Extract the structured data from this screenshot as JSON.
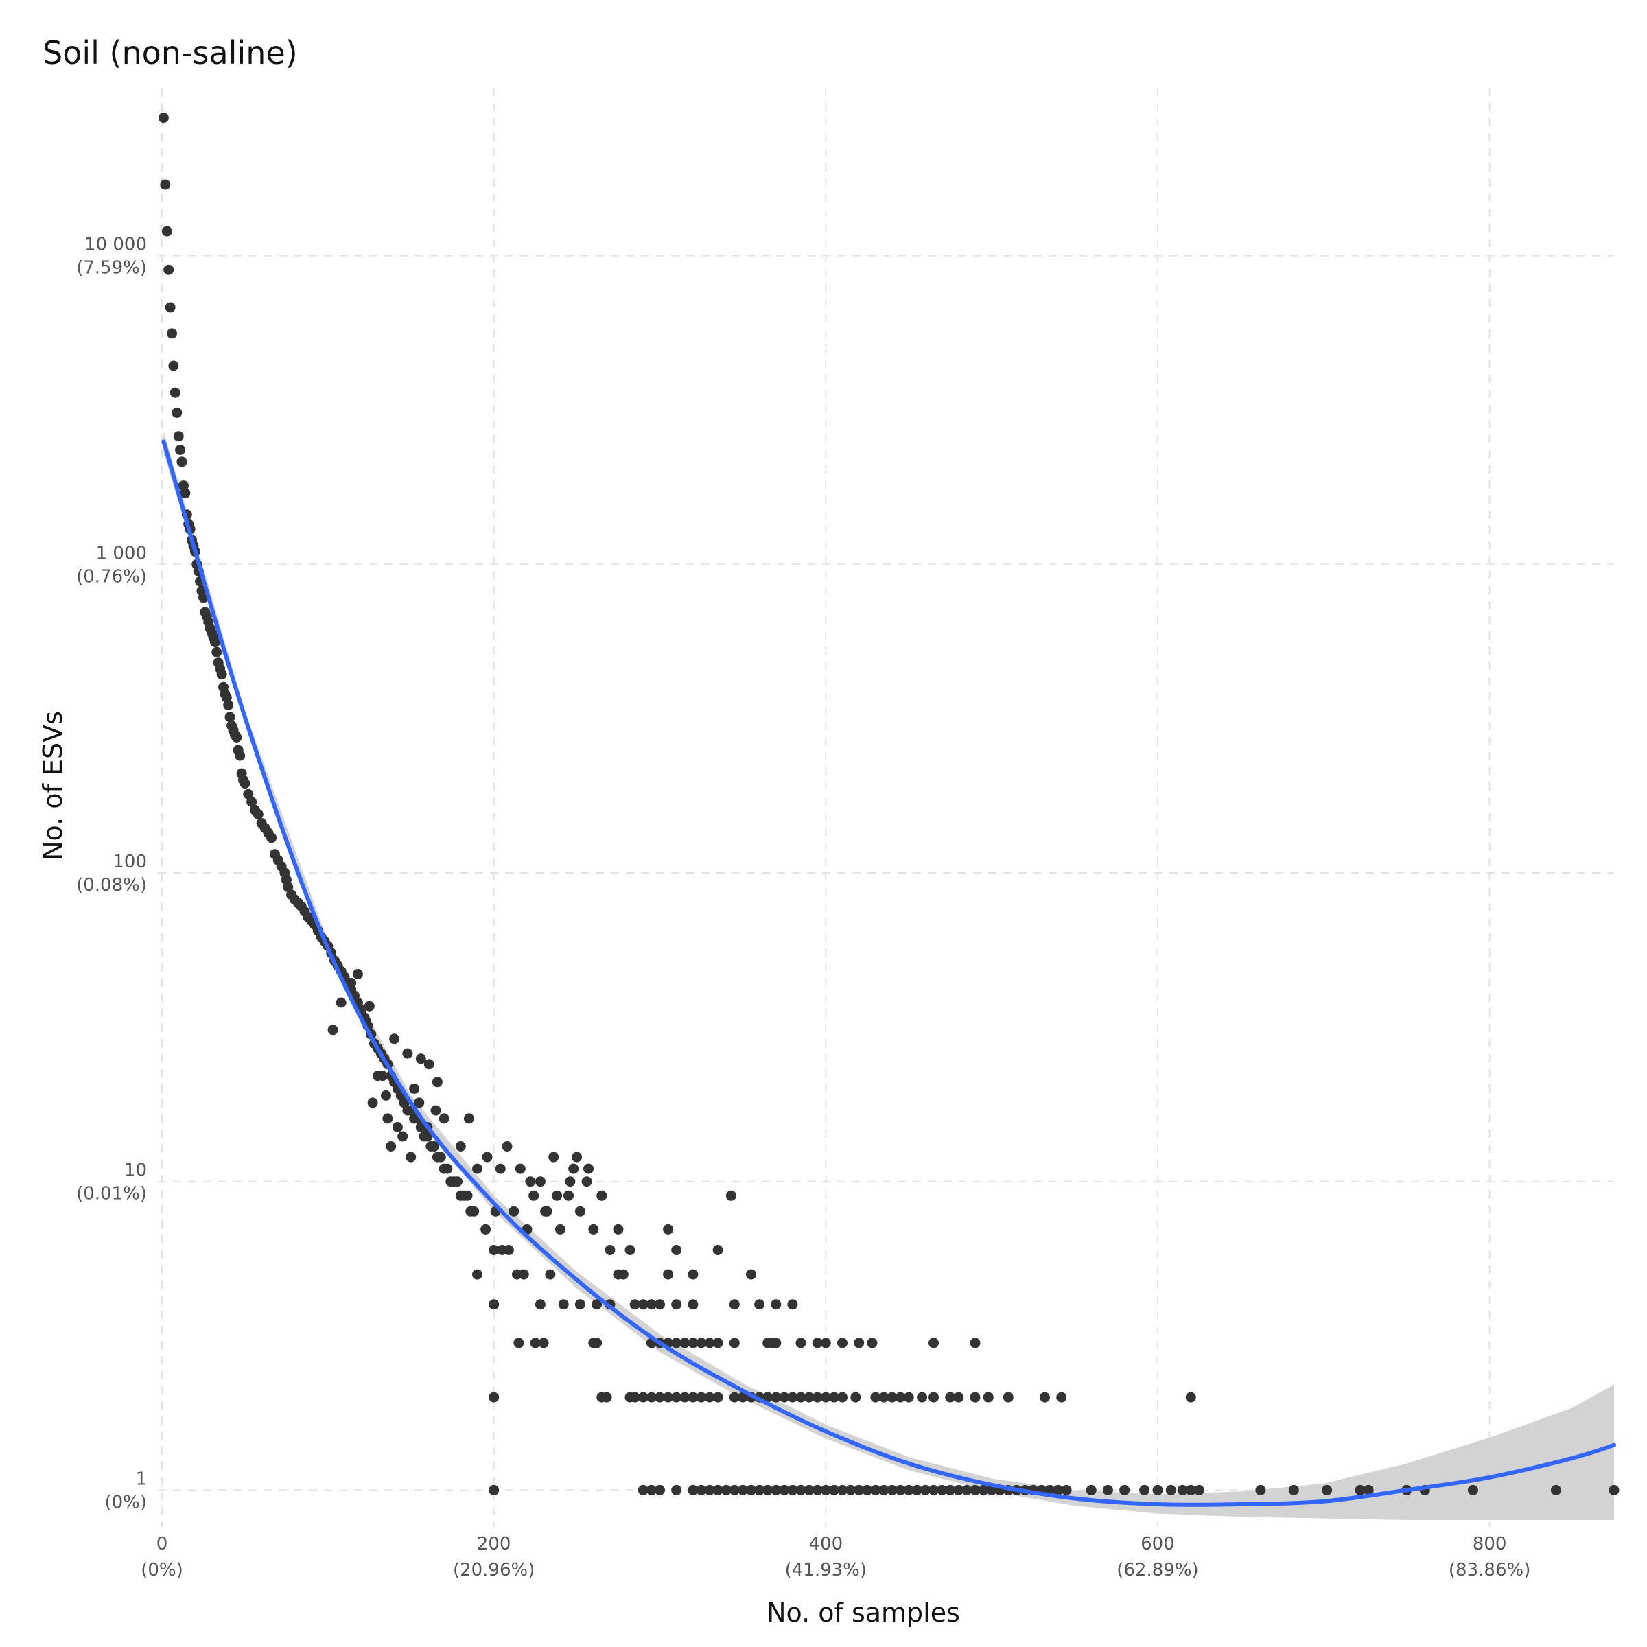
{
  "chart_data": {
    "type": "scatter",
    "title": "Soil (non-saline)",
    "xlabel": "No. of samples",
    "ylabel": "No. of ESVs",
    "y_scale": "log10",
    "xlim": [
      0,
      875
    ],
    "ylim": [
      0.8,
      35000
    ],
    "grid": true,
    "x_ticks": [
      {
        "value": 0,
        "label": "0",
        "sublabel": "(0%)"
      },
      {
        "value": 200,
        "label": "200",
        "sublabel": "(20.96%)"
      },
      {
        "value": 400,
        "label": "400",
        "sublabel": "(41.93%)"
      },
      {
        "value": 600,
        "label": "600",
        "sublabel": "(62.89%)"
      },
      {
        "value": 800,
        "label": "800",
        "sublabel": "(83.86%)"
      }
    ],
    "y_ticks": [
      {
        "value": 1,
        "label": "1",
        "sublabel": "(0%)"
      },
      {
        "value": 10,
        "label": "10",
        "sublabel": "(0.01%)"
      },
      {
        "value": 100,
        "label": "100",
        "sublabel": "(0.08%)"
      },
      {
        "value": 1000,
        "label": "1 000",
        "sublabel": "(0.76%)"
      },
      {
        "value": 10000,
        "label": "10 000",
        "sublabel": "(7.59%)"
      }
    ],
    "points": [
      [
        1,
        28000
      ],
      [
        2,
        17000
      ],
      [
        3,
        12000
      ],
      [
        4,
        9000
      ],
      [
        5,
        6800
      ],
      [
        6,
        5600
      ],
      [
        7,
        4400
      ],
      [
        8,
        3600
      ],
      [
        9,
        3100
      ],
      [
        10,
        2600
      ],
      [
        11,
        2350
      ],
      [
        12,
        2150
      ],
      [
        13,
        1800
      ],
      [
        14,
        1700
      ],
      [
        15,
        1450
      ],
      [
        16,
        1350
      ],
      [
        17,
        1300
      ],
      [
        18,
        1200
      ],
      [
        19,
        1150
      ],
      [
        20,
        1100
      ],
      [
        21,
        1000
      ],
      [
        22,
        950
      ],
      [
        23,
        880
      ],
      [
        24,
        820
      ],
      [
        25,
        780
      ],
      [
        26,
        700
      ],
      [
        27,
        680
      ],
      [
        28,
        650
      ],
      [
        29,
        620
      ],
      [
        30,
        600
      ],
      [
        31,
        580
      ],
      [
        32,
        560
      ],
      [
        33,
        520
      ],
      [
        34,
        480
      ],
      [
        35,
        460
      ],
      [
        36,
        440
      ],
      [
        37,
        400
      ],
      [
        38,
        380
      ],
      [
        39,
        370
      ],
      [
        40,
        350
      ],
      [
        41,
        320
      ],
      [
        42,
        300
      ],
      [
        43,
        290
      ],
      [
        44,
        280
      ],
      [
        45,
        275
      ],
      [
        46,
        250
      ],
      [
        47,
        240
      ],
      [
        48,
        210
      ],
      [
        49,
        200
      ],
      [
        50,
        195
      ],
      [
        52,
        180
      ],
      [
        54,
        170
      ],
      [
        56,
        160
      ],
      [
        58,
        155
      ],
      [
        60,
        145
      ],
      [
        62,
        140
      ],
      [
        64,
        135
      ],
      [
        66,
        130
      ],
      [
        68,
        115
      ],
      [
        70,
        110
      ],
      [
        72,
        105
      ],
      [
        74,
        100
      ],
      [
        75,
        95
      ],
      [
        76,
        90
      ],
      [
        78,
        85
      ],
      [
        80,
        82
      ],
      [
        82,
        80
      ],
      [
        84,
        78
      ],
      [
        86,
        75
      ],
      [
        88,
        72
      ],
      [
        90,
        70
      ],
      [
        92,
        68
      ],
      [
        94,
        65
      ],
      [
        96,
        62
      ],
      [
        98,
        60
      ],
      [
        100,
        58
      ],
      [
        102,
        55
      ],
      [
        104,
        52
      ],
      [
        106,
        50
      ],
      [
        108,
        48
      ],
      [
        110,
        46
      ],
      [
        112,
        44
      ],
      [
        114,
        42
      ],
      [
        116,
        40
      ],
      [
        118,
        38
      ],
      [
        120,
        36
      ],
      [
        122,
        34
      ],
      [
        124,
        32
      ],
      [
        126,
        30
      ],
      [
        128,
        28
      ],
      [
        130,
        27
      ],
      [
        132,
        26
      ],
      [
        134,
        25
      ],
      [
        136,
        24
      ],
      [
        138,
        22
      ],
      [
        140,
        21
      ],
      [
        142,
        20
      ],
      [
        144,
        19
      ],
      [
        146,
        18
      ],
      [
        148,
        17
      ],
      [
        150,
        17
      ],
      [
        152,
        16
      ],
      [
        154,
        16
      ],
      [
        156,
        15
      ],
      [
        158,
        14
      ],
      [
        160,
        14
      ],
      [
        162,
        13
      ],
      [
        164,
        13
      ],
      [
        166,
        12
      ],
      [
        168,
        12
      ],
      [
        170,
        11
      ],
      [
        172,
        11
      ],
      [
        174,
        10
      ],
      [
        176,
        10
      ],
      [
        178,
        10
      ],
      [
        180,
        9
      ],
      [
        182,
        9
      ],
      [
        184,
        9
      ],
      [
        186,
        8
      ],
      [
        188,
        8
      ],
      [
        103,
        31
      ],
      [
        108,
        38
      ],
      [
        114,
        44
      ],
      [
        118,
        47
      ],
      [
        123,
        33
      ],
      [
        127,
        18
      ],
      [
        133,
        22
      ],
      [
        136,
        16
      ],
      [
        140,
        29
      ],
      [
        145,
        14
      ],
      [
        150,
        12
      ],
      [
        155,
        18
      ],
      [
        160,
        15
      ],
      [
        165,
        17
      ],
      [
        170,
        16
      ],
      [
        180,
        13
      ],
      [
        185,
        16
      ],
      [
        190,
        11
      ],
      [
        195,
        7
      ],
      [
        200,
        6
      ],
      [
        204,
        11
      ],
      [
        208,
        13
      ],
      [
        212,
        8
      ],
      [
        216,
        11
      ],
      [
        220,
        7
      ],
      [
        224,
        9
      ],
      [
        228,
        10
      ],
      [
        232,
        8
      ],
      [
        236,
        12
      ],
      [
        240,
        7
      ],
      [
        245,
        9
      ],
      [
        248,
        11
      ],
      [
        252,
        8
      ],
      [
        256,
        10
      ],
      [
        260,
        7
      ],
      [
        265,
        9
      ],
      [
        270,
        6
      ],
      [
        275,
        7
      ],
      [
        278,
        5
      ],
      [
        282,
        6
      ],
      [
        125,
        37
      ],
      [
        130,
        22
      ],
      [
        135,
        19
      ],
      [
        138,
        13
      ],
      [
        142,
        15
      ],
      [
        148,
        26
      ],
      [
        152,
        20
      ],
      [
        156,
        25
      ],
      [
        161,
        24
      ],
      [
        166,
        21
      ],
      [
        196,
        12
      ],
      [
        201,
        8
      ],
      [
        209,
        6
      ],
      [
        214,
        5
      ],
      [
        222,
        10
      ],
      [
        231,
        8
      ],
      [
        238,
        9
      ],
      [
        246,
        10
      ],
      [
        250,
        12
      ],
      [
        257,
        11
      ],
      [
        190,
        5
      ],
      [
        200,
        4
      ],
      [
        205,
        6
      ],
      [
        218,
        5
      ],
      [
        228,
        4
      ],
      [
        234,
        5
      ],
      [
        242,
        4
      ],
      [
        252,
        4
      ],
      [
        262,
        4
      ],
      [
        270,
        4
      ],
      [
        275,
        5
      ],
      [
        285,
        4
      ],
      [
        290,
        4
      ],
      [
        295,
        4
      ],
      [
        300,
        4
      ],
      [
        305,
        5
      ],
      [
        310,
        4
      ],
      [
        320,
        4
      ],
      [
        345,
        4
      ],
      [
        360,
        4
      ],
      [
        305,
        7
      ],
      [
        310,
        6
      ],
      [
        320,
        5
      ],
      [
        335,
        6
      ],
      [
        343,
        9
      ],
      [
        355,
        5
      ],
      [
        370,
        4
      ],
      [
        380,
        4
      ],
      [
        215,
        3
      ],
      [
        225,
        3
      ],
      [
        230,
        3
      ],
      [
        260,
        3
      ],
      [
        262,
        3
      ],
      [
        295,
        3
      ],
      [
        300,
        3
      ],
      [
        305,
        3
      ],
      [
        310,
        3
      ],
      [
        315,
        3
      ],
      [
        320,
        3
      ],
      [
        325,
        3
      ],
      [
        330,
        3
      ],
      [
        335,
        3
      ],
      [
        345,
        3
      ],
      [
        365,
        3
      ],
      [
        368,
        3
      ],
      [
        370,
        3
      ],
      [
        385,
        3
      ],
      [
        395,
        3
      ],
      [
        400,
        3
      ],
      [
        410,
        3
      ],
      [
        420,
        3
      ],
      [
        428,
        3
      ],
      [
        465,
        3
      ],
      [
        490,
        3
      ],
      [
        200,
        2
      ],
      [
        265,
        2
      ],
      [
        268,
        2
      ],
      [
        282,
        2
      ],
      [
        285,
        2
      ],
      [
        290,
        2
      ],
      [
        295,
        2
      ],
      [
        300,
        2
      ],
      [
        305,
        2
      ],
      [
        310,
        2
      ],
      [
        315,
        2
      ],
      [
        320,
        2
      ],
      [
        325,
        2
      ],
      [
        330,
        2
      ],
      [
        335,
        2
      ],
      [
        345,
        2
      ],
      [
        350,
        2
      ],
      [
        355,
        2
      ],
      [
        360,
        2
      ],
      [
        365,
        2
      ],
      [
        370,
        2
      ],
      [
        375,
        2
      ],
      [
        380,
        2
      ],
      [
        385,
        2
      ],
      [
        390,
        2
      ],
      [
        395,
        2
      ],
      [
        400,
        2
      ],
      [
        405,
        2
      ],
      [
        410,
        2
      ],
      [
        418,
        2
      ],
      [
        430,
        2
      ],
      [
        435,
        2
      ],
      [
        440,
        2
      ],
      [
        445,
        2
      ],
      [
        450,
        2
      ],
      [
        458,
        2
      ],
      [
        465,
        2
      ],
      [
        475,
        2
      ],
      [
        480,
        2
      ],
      [
        490,
        2
      ],
      [
        498,
        2
      ],
      [
        510,
        2
      ],
      [
        532,
        2
      ],
      [
        542,
        2
      ],
      [
        620,
        2
      ],
      [
        200,
        1
      ],
      [
        290,
        1
      ],
      [
        295,
        1
      ],
      [
        300,
        1
      ],
      [
        310,
        1
      ],
      [
        320,
        1
      ],
      [
        325,
        1
      ],
      [
        330,
        1
      ],
      [
        335,
        1
      ],
      [
        340,
        1
      ],
      [
        345,
        1
      ],
      [
        350,
        1
      ],
      [
        355,
        1
      ],
      [
        360,
        1
      ],
      [
        365,
        1
      ],
      [
        370,
        1
      ],
      [
        375,
        1
      ],
      [
        380,
        1
      ],
      [
        385,
        1
      ],
      [
        390,
        1
      ],
      [
        395,
        1
      ],
      [
        400,
        1
      ],
      [
        405,
        1
      ],
      [
        410,
        1
      ],
      [
        415,
        1
      ],
      [
        420,
        1
      ],
      [
        425,
        1
      ],
      [
        430,
        1
      ],
      [
        435,
        1
      ],
      [
        440,
        1
      ],
      [
        445,
        1
      ],
      [
        450,
        1
      ],
      [
        455,
        1
      ],
      [
        460,
        1
      ],
      [
        465,
        1
      ],
      [
        470,
        1
      ],
      [
        475,
        1
      ],
      [
        480,
        1
      ],
      [
        485,
        1
      ],
      [
        490,
        1
      ],
      [
        495,
        1
      ],
      [
        500,
        1
      ],
      [
        505,
        1
      ],
      [
        510,
        1
      ],
      [
        515,
        1
      ],
      [
        520,
        1
      ],
      [
        525,
        1
      ],
      [
        530,
        1
      ],
      [
        535,
        1
      ],
      [
        540,
        1
      ],
      [
        545,
        1
      ],
      [
        560,
        1
      ],
      [
        570,
        1
      ],
      [
        580,
        1
      ],
      [
        592,
        1
      ],
      [
        600,
        1
      ],
      [
        608,
        1
      ],
      [
        615,
        1
      ],
      [
        620,
        1
      ],
      [
        625,
        1
      ],
      [
        662,
        1
      ],
      [
        682,
        1
      ],
      [
        702,
        1
      ],
      [
        722,
        1
      ],
      [
        727,
        1
      ],
      [
        750,
        1
      ],
      [
        761,
        1
      ],
      [
        790,
        1
      ],
      [
        840,
        1
      ],
      [
        875,
        1
      ]
    ],
    "fit": {
      "type": "smooth",
      "color": "#3366ff",
      "x": [
        1,
        50,
        100,
        150,
        200,
        250,
        300,
        350,
        400,
        450,
        500,
        550,
        600,
        650,
        700,
        750,
        800,
        850,
        875
      ],
      "y": [
        2500,
        320,
        57,
        18,
        8.5,
        4.8,
        3.0,
        2.1,
        1.55,
        1.22,
        1.04,
        0.94,
        0.9,
        0.9,
        0.92,
        1.0,
        1.1,
        1.27,
        1.4
      ],
      "ci_low": [
        2300,
        305,
        54,
        17,
        8.0,
        4.5,
        2.8,
        1.98,
        1.47,
        1.16,
        0.99,
        0.89,
        0.84,
        0.82,
        0.81,
        0.8,
        0.8,
        0.8,
        0.8
      ],
      "ci_high": [
        2700,
        335,
        60,
        19,
        9.0,
        5.1,
        3.2,
        2.22,
        1.63,
        1.28,
        1.09,
        1.0,
        0.97,
        0.99,
        1.05,
        1.22,
        1.48,
        1.85,
        2.2
      ]
    }
  }
}
